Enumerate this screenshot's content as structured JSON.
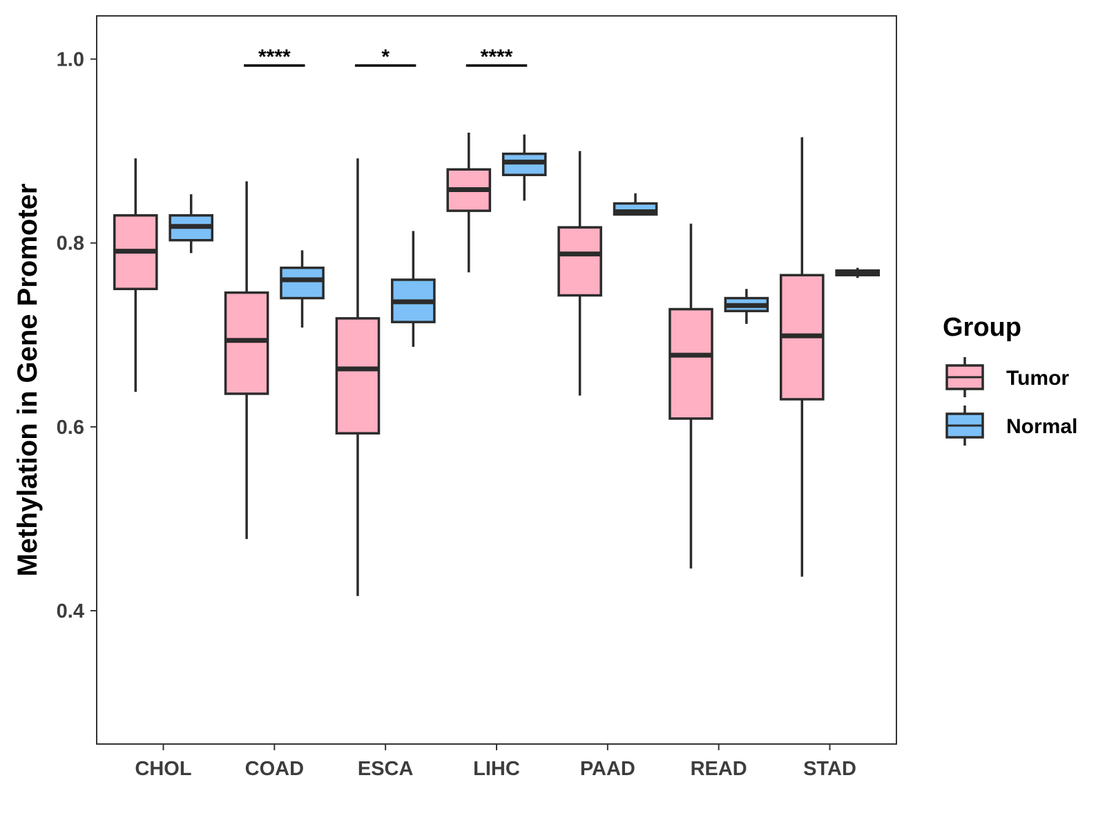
{
  "chart_data": {
    "type": "boxplot",
    "title": "",
    "xlabel": "",
    "ylabel": "Methylation in Gene Promoter",
    "ylim": [
      0.255,
      1.047
    ],
    "yticks": [
      0.4,
      0.6,
      0.8,
      1.0
    ],
    "ytick_labels": [
      "0.4",
      "0.6",
      "0.8",
      "1.0"
    ],
    "grid": false,
    "categories": [
      "CHOL",
      "COAD",
      "ESCA",
      "LIHC",
      "PAAD",
      "READ",
      "STAD"
    ],
    "legend": {
      "title": "Group",
      "placement": "right",
      "entries": [
        {
          "name": "Tumor",
          "color": "#ffb0c2"
        },
        {
          "name": "Normal",
          "color": "#7cc0f7"
        }
      ]
    },
    "series": [
      {
        "name": "Tumor",
        "color": "#ffb0c2",
        "boxes": [
          {
            "category": "CHOL",
            "whisker_low": 0.638,
            "q1": 0.75,
            "median": 0.791,
            "q3": 0.83,
            "whisker_high": 0.892
          },
          {
            "category": "COAD",
            "whisker_low": 0.478,
            "q1": 0.636,
            "median": 0.694,
            "q3": 0.746,
            "whisker_high": 0.867
          },
          {
            "category": "ESCA",
            "whisker_low": 0.416,
            "q1": 0.593,
            "median": 0.663,
            "q3": 0.718,
            "whisker_high": 0.892
          },
          {
            "category": "LIHC",
            "whisker_low": 0.768,
            "q1": 0.835,
            "median": 0.858,
            "q3": 0.88,
            "whisker_high": 0.92
          },
          {
            "category": "PAAD",
            "whisker_low": 0.634,
            "q1": 0.743,
            "median": 0.788,
            "q3": 0.817,
            "whisker_high": 0.9
          },
          {
            "category": "READ",
            "whisker_low": 0.446,
            "q1": 0.609,
            "median": 0.678,
            "q3": 0.728,
            "whisker_high": 0.821
          },
          {
            "category": "STAD",
            "whisker_low": 0.437,
            "q1": 0.63,
            "median": 0.699,
            "q3": 0.765,
            "whisker_high": 0.915
          }
        ]
      },
      {
        "name": "Normal",
        "color": "#7cc0f7",
        "boxes": [
          {
            "category": "CHOL",
            "whisker_low": 0.789,
            "q1": 0.803,
            "median": 0.818,
            "q3": 0.83,
            "whisker_high": 0.853
          },
          {
            "category": "COAD",
            "whisker_low": 0.708,
            "q1": 0.74,
            "median": 0.76,
            "q3": 0.773,
            "whisker_high": 0.792
          },
          {
            "category": "ESCA",
            "whisker_low": 0.687,
            "q1": 0.714,
            "median": 0.736,
            "q3": 0.76,
            "whisker_high": 0.813
          },
          {
            "category": "LIHC",
            "whisker_low": 0.846,
            "q1": 0.874,
            "median": 0.888,
            "q3": 0.897,
            "whisker_high": 0.918
          },
          {
            "category": "PAAD",
            "whisker_low": 0.83,
            "q1": 0.831,
            "median": 0.834,
            "q3": 0.843,
            "whisker_high": 0.854
          },
          {
            "category": "READ",
            "whisker_low": 0.712,
            "q1": 0.726,
            "median": 0.732,
            "q3": 0.74,
            "whisker_high": 0.75
          },
          {
            "category": "STAD",
            "whisker_low": 0.762,
            "q1": 0.765,
            "median": 0.768,
            "q3": 0.77,
            "whisker_high": 0.773
          }
        ]
      }
    ],
    "annotations": [
      {
        "category": "COAD",
        "label": "****"
      },
      {
        "category": "ESCA",
        "label": "*"
      },
      {
        "category": "LIHC",
        "label": "****"
      }
    ]
  }
}
